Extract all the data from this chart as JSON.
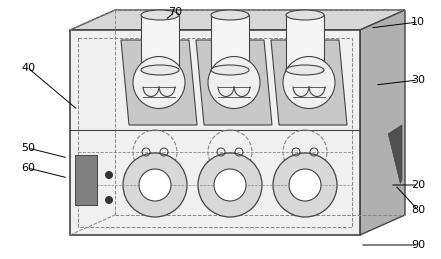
{
  "bg_color": "#ffffff",
  "line_color": "#444444",
  "dashed_color": "#888888",
  "light_gray": "#d8d8d8",
  "mid_gray": "#b0b0b0",
  "dark_gray": "#707070",
  "shadow_gray": "#333333",
  "panel_gray": "#c8c8c8",
  "figsize": [
    4.41,
    2.59
  ],
  "dpi": 100
}
